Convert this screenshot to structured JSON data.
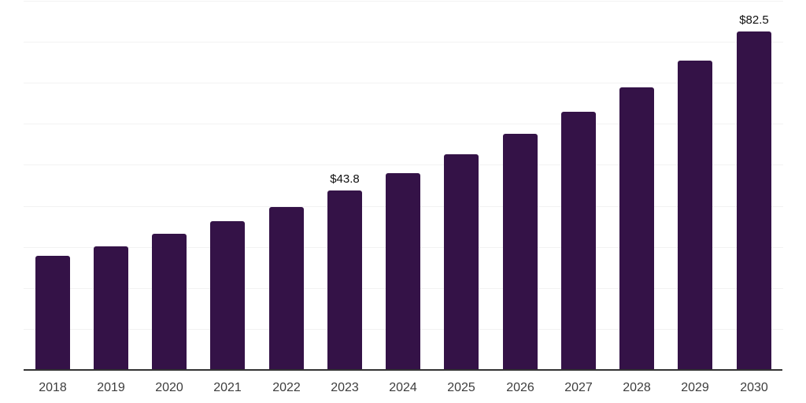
{
  "chart_data": {
    "type": "bar",
    "title": "",
    "xlabel": "",
    "ylabel": "",
    "categories": [
      "2018",
      "2019",
      "2020",
      "2021",
      "2022",
      "2023",
      "2024",
      "2025",
      "2026",
      "2027",
      "2028",
      "2029",
      "2030"
    ],
    "values": [
      27.9,
      30.1,
      33.2,
      36.2,
      39.7,
      43.8,
      47.9,
      52.5,
      57.5,
      62.9,
      68.8,
      75.4,
      82.5
    ],
    "annotations": [
      {
        "category": "2023",
        "label": "$43.8"
      },
      {
        "category": "2030",
        "label": "$82.5"
      }
    ],
    "ylim": [
      0,
      90
    ],
    "grid": true,
    "grid_step": 10,
    "legend_position": "none",
    "bar_color": "#341247",
    "gridline_color": "#f2f2f2",
    "axis_line_color": "#333333",
    "tick_label_color": "#3d3d3d",
    "annotation_color": "#111111"
  }
}
